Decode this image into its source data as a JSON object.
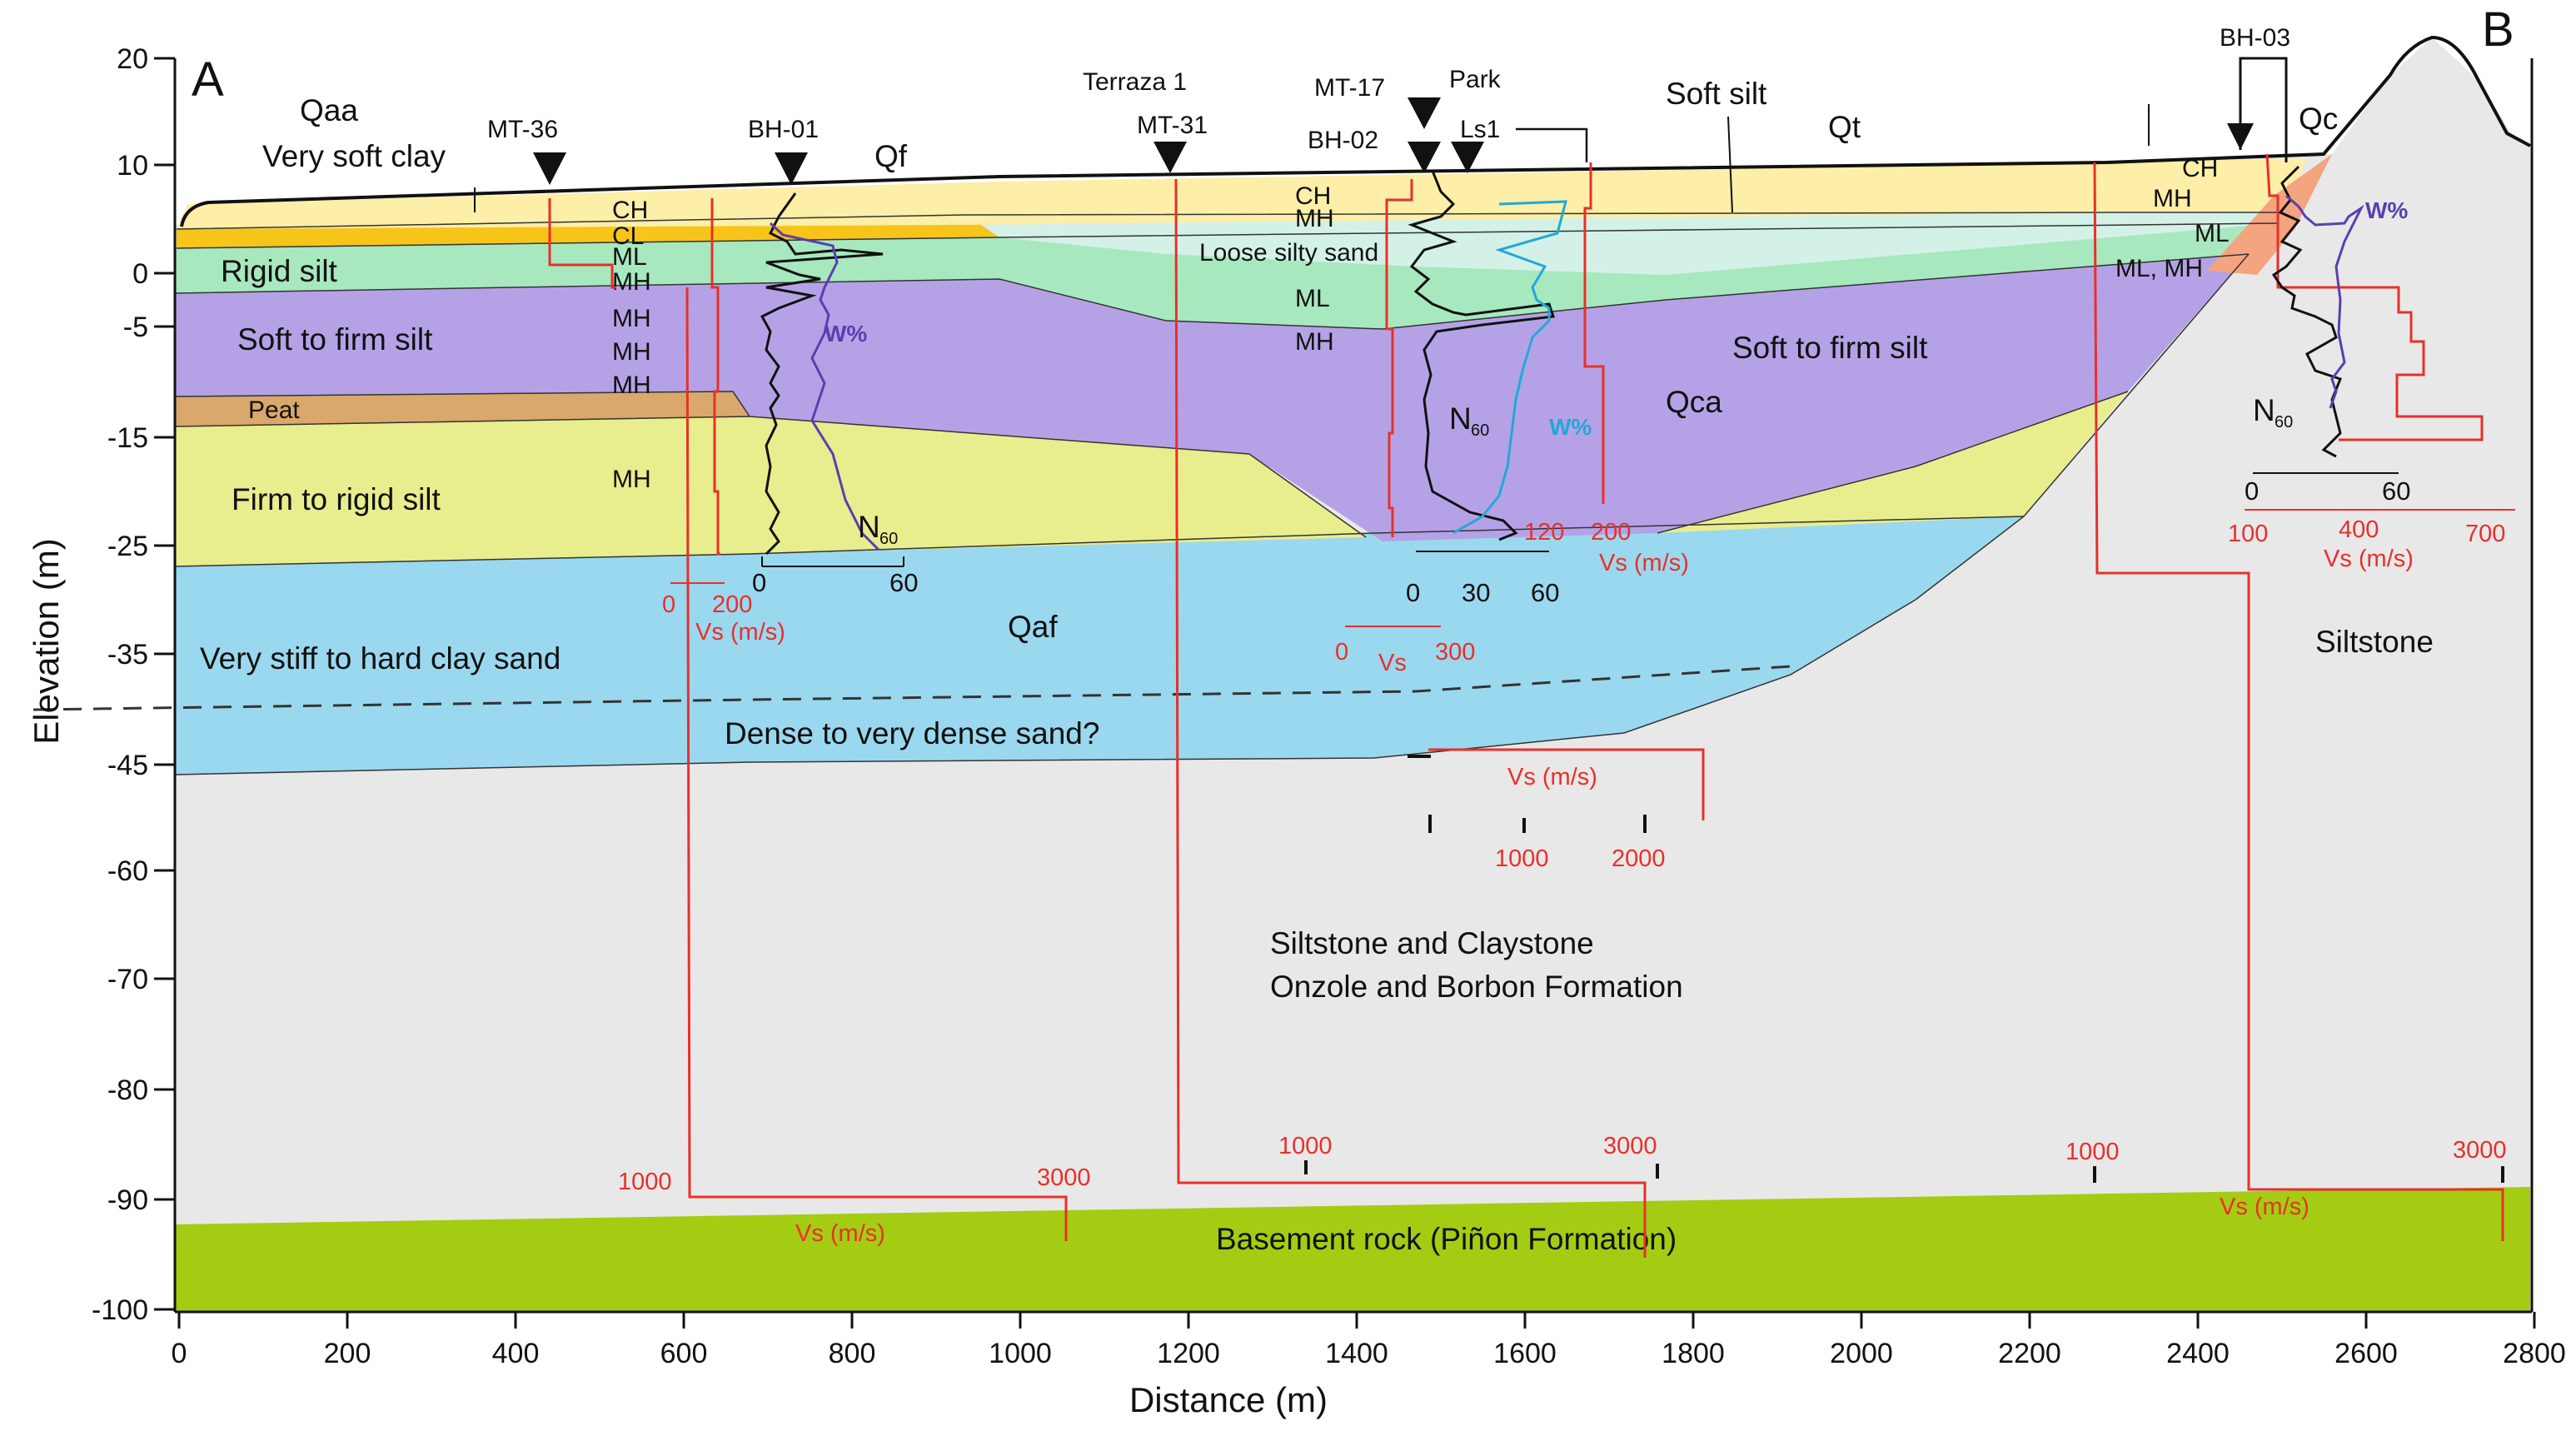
{
  "figure": {
    "corner_left": "A",
    "corner_right": "B",
    "x_axis_title": "Distance (m)",
    "y_axis_title": "Elevation (m)",
    "x_ticks": [
      "0",
      "200",
      "400",
      "600",
      "800",
      "1000",
      "1200",
      "1400",
      "1600",
      "1800",
      "2000",
      "2200",
      "2400",
      "2600",
      "2800"
    ],
    "y_ticks": [
      "20",
      "10",
      "0",
      "-5",
      "-15",
      "-25",
      "-35",
      "-45",
      "-60",
      "-70",
      "-80",
      "-90",
      "-100"
    ]
  },
  "units": {
    "qaa": "Qaa",
    "qf": "Qf",
    "qt": "Qt",
    "qc": "Qc",
    "qca": "Qca",
    "qaf": "Qaf"
  },
  "layers": {
    "very_soft_clay": "Very soft clay",
    "soft_silt": "Soft silt",
    "rigid_silt": "Rigid silt",
    "soft_firm_silt_left": "Soft to firm silt",
    "soft_firm_silt_right": "Soft to firm silt",
    "peat": "Peat",
    "firm_rigid_silt": "Firm to rigid silt",
    "loose_silty_sand": "Loose silty sand",
    "very_stiff_clay_sand": "Very stiff to hard clay sand",
    "dense_sand": "Dense to very dense sand?",
    "siltstone_claystone_1": "Siltstone and Claystone",
    "siltstone_claystone_2": "Onzole and Borbon Formation",
    "siltstone": "Siltstone",
    "basement": "Basement rock (Piñon Formation)"
  },
  "soil_codes": {
    "ch": "CH",
    "cl": "CL",
    "ml": "ML",
    "mh": "MH",
    "ml_mh": "ML, MH"
  },
  "boreholes": {
    "mt36": "MT-36",
    "bh01": "BH-01",
    "terraza1": "Terraza 1",
    "mt31": "MT-31",
    "mt17": "MT-17",
    "bh02": "BH-02",
    "park": "Park",
    "ls1": "Ls1",
    "bh03": "BH-03"
  },
  "profiles": {
    "wpct": "W%",
    "n60": "N",
    "n60_sub": "60",
    "vs": "Vs (m/s)",
    "vs_short": "Vs"
  },
  "insets": {
    "bh01_vs_ticks": [
      "0",
      "200"
    ],
    "bh01_n_ticks": [
      "0",
      "60"
    ],
    "bh02_vs_ticks": [
      "0",
      "300"
    ],
    "bh02_n_ticks": [
      "0",
      "30",
      "60"
    ],
    "ls1_vs_ticks": [
      "120",
      "200"
    ],
    "deep_vs_ticks": [
      "1000",
      "2000"
    ],
    "bh03_n_ticks": [
      "0",
      "60"
    ],
    "bh03_vs_ticks": [
      "100",
      "400",
      "700"
    ],
    "mt36_vs_ticks": [
      "1000",
      "3000"
    ],
    "mt31_vs_ticks": [
      "1000",
      "3000"
    ],
    "right_vs_ticks": [
      "1000",
      "3000"
    ]
  },
  "colors": {
    "yellow_top": "#fdeea8",
    "gold": "#f7c51a",
    "pale_cyan": "#d4f1e8",
    "green": "#a7e8bf",
    "purple": "#b5a2e6",
    "peat": "#d9a86a",
    "lime": "#e8ed8e",
    "blue": "#9ad8ef",
    "grey": "#e8e8e8",
    "basement": "#a4cc12",
    "salmon": "#f4a47e",
    "red_line": "#e8302a",
    "wpct_line": "#5a3fb0",
    "cyan_line": "#22a8d8"
  }
}
